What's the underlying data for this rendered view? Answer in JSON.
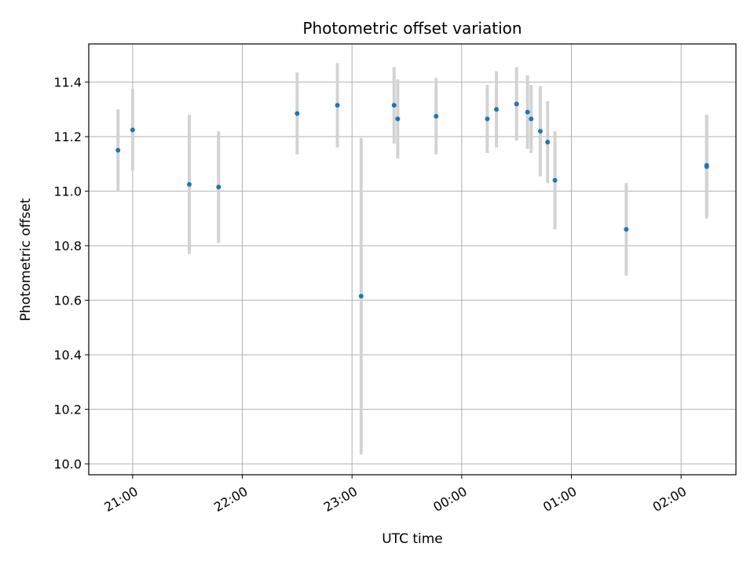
{
  "chart_data": {
    "type": "scatter",
    "title": "Photometric offset variation",
    "xlabel": "UTC time",
    "ylabel": "Photometric offset",
    "grid": true,
    "x_axis": {
      "type": "time",
      "start": "20:36",
      "end": "02:30",
      "ticks": [
        "21:00",
        "22:00",
        "23:00",
        "00:00",
        "01:00",
        "02:00"
      ]
    },
    "y_axis": {
      "range": [
        9.96,
        11.54
      ],
      "ticks": [
        "10.0",
        "10.2",
        "10.4",
        "10.6",
        "10.8",
        "11.0",
        "11.2",
        "11.4"
      ]
    },
    "colors": {
      "points": "#1f77b4",
      "errorbars": "#d3d3d3",
      "grid": "#b0b0b0"
    },
    "points": [
      {
        "x": "20:52",
        "y": 11.15,
        "err": 0.15
      },
      {
        "x": "21:00",
        "y": 11.225,
        "err": 0.15
      },
      {
        "x": "21:31",
        "y": 11.025,
        "err": 0.255
      },
      {
        "x": "21:47",
        "y": 11.015,
        "err": 0.205
      },
      {
        "x": "22:30",
        "y": 11.285,
        "err": 0.15
      },
      {
        "x": "22:52",
        "y": 11.315,
        "err": 0.155
      },
      {
        "x": "23:05",
        "y": 10.615,
        "err": 0.58
      },
      {
        "x": "23:23",
        "y": 11.315,
        "err": 0.14
      },
      {
        "x": "23:25",
        "y": 11.265,
        "err": 0.145
      },
      {
        "x": "23:46",
        "y": 11.275,
        "err": 0.14
      },
      {
        "x": "00:14",
        "y": 11.265,
        "err": 0.125
      },
      {
        "x": "00:19",
        "y": 11.3,
        "err": 0.14
      },
      {
        "x": "00:30",
        "y": 11.32,
        "err": 0.135
      },
      {
        "x": "00:36",
        "y": 11.29,
        "err": 0.135
      },
      {
        "x": "00:38",
        "y": 11.265,
        "err": 0.125
      },
      {
        "x": "00:43",
        "y": 11.22,
        "err": 0.165
      },
      {
        "x": "00:47",
        "y": 11.18,
        "err": 0.15
      },
      {
        "x": "00:51",
        "y": 11.04,
        "err": 0.18
      },
      {
        "x": "01:30",
        "y": 10.86,
        "err": 0.17
      },
      {
        "x": "02:14",
        "y": 11.09,
        "err": 0.19
      },
      {
        "x": "02:14",
        "y": 11.095,
        "err": 0.185
      }
    ]
  }
}
